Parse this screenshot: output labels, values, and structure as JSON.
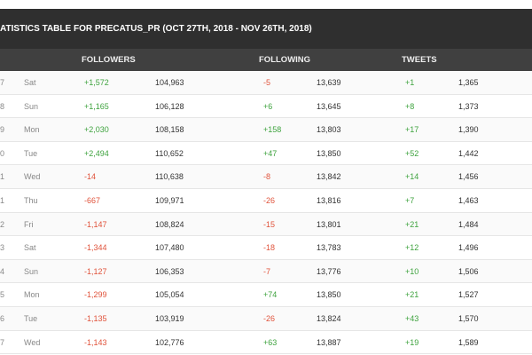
{
  "header": {
    "title": "ATISTICS TABLE FOR PRECATUS_PR (OCT 27TH, 2018 - NOV 26TH, 2018)"
  },
  "table": {
    "columns": [
      "FOLLOWERS",
      "FOLLOWING",
      "TWEETS"
    ],
    "rows": [
      [
        "7",
        "Sat",
        "+1,572",
        "104,963",
        "-5",
        "13,639",
        "+1",
        "1,365"
      ],
      [
        "8",
        "Sun",
        "+1,165",
        "106,128",
        "+6",
        "13,645",
        "+8",
        "1,373"
      ],
      [
        "9",
        "Mon",
        "+2,030",
        "108,158",
        "+158",
        "13,803",
        "+17",
        "1,390"
      ],
      [
        "0",
        "Tue",
        "+2,494",
        "110,652",
        "+47",
        "13,850",
        "+52",
        "1,442"
      ],
      [
        "1",
        "Wed",
        "-14",
        "110,638",
        "-8",
        "13,842",
        "+14",
        "1,456"
      ],
      [
        "1",
        "Thu",
        "-667",
        "109,971",
        "-26",
        "13,816",
        "+7",
        "1,463"
      ],
      [
        "2",
        "Fri",
        "-1,147",
        "108,824",
        "-15",
        "13,801",
        "+21",
        "1,484"
      ],
      [
        "3",
        "Sat",
        "-1,344",
        "107,480",
        "-18",
        "13,783",
        "+12",
        "1,496"
      ],
      [
        "4",
        "Sun",
        "-1,127",
        "106,353",
        "-7",
        "13,776",
        "+10",
        "1,506"
      ],
      [
        "5",
        "Mon",
        "-1,299",
        "105,054",
        "+74",
        "13,850",
        "+21",
        "1,527"
      ],
      [
        "6",
        "Tue",
        "-1,135",
        "103,919",
        "-26",
        "13,824",
        "+43",
        "1,570"
      ],
      [
        "7",
        "Wed",
        "-1,143",
        "102,776",
        "+63",
        "13,887",
        "+19",
        "1,589"
      ]
    ]
  }
}
